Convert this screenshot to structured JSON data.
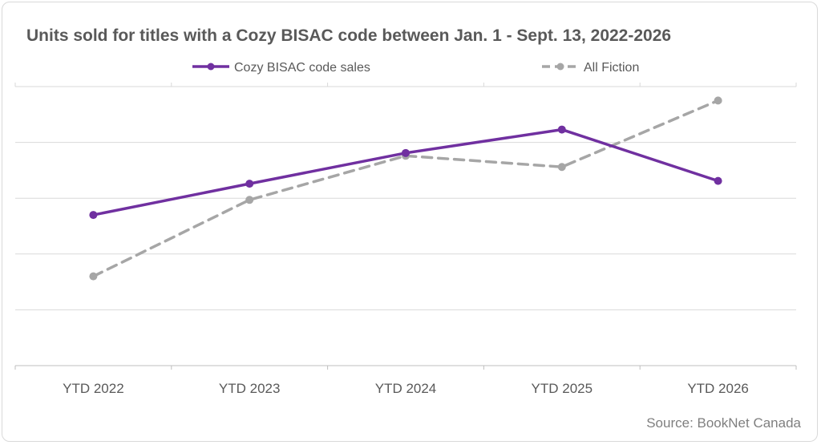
{
  "chart_data": {
    "type": "line",
    "title": "Units sold for titles with a Cozy BISAC code between Jan. 1 - Sept. 13, 2022-2026",
    "categories": [
      "YTD 2022",
      "YTD 2023",
      "YTD 2024",
      "YTD 2025",
      "YTD 2026"
    ],
    "series": [
      {
        "name": "Cozy BISAC code sales",
        "values": [
          2.7,
          3.26,
          3.81,
          4.23,
          3.31
        ],
        "color": "#7030a0",
        "style": "solid"
      },
      {
        "name": "All Fiction",
        "values": [
          1.6,
          2.97,
          3.76,
          3.56,
          4.75
        ],
        "color": "#a6a6a6",
        "style": "dashed"
      }
    ],
    "ylim": [
      0,
      5
    ],
    "y_tick_labels_shown": false,
    "grid": true,
    "legend_position": "top",
    "source": "Source: BookNet Canada"
  }
}
